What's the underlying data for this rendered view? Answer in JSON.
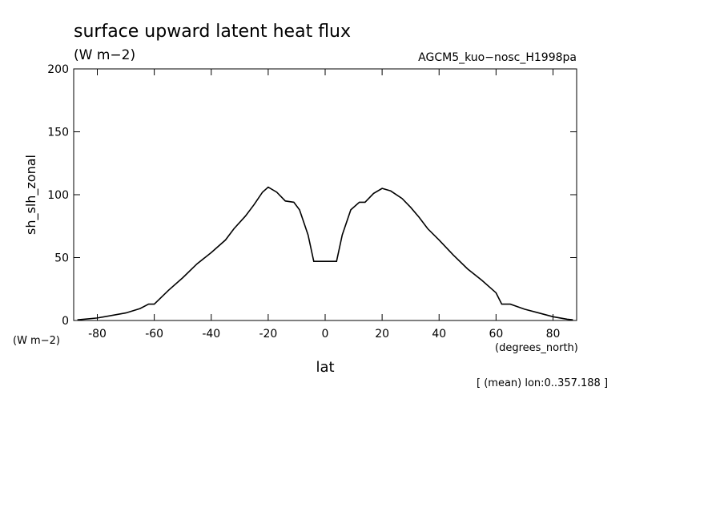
{
  "chart_data": {
    "type": "line",
    "title": "surface upward latent heat flux",
    "units": "(W m−2)",
    "run_label": "AGCM5_kuo−nosc_H1998pa",
    "y_label": "sh_slh_zonal",
    "y_units": "(W m−2)",
    "x_label": "lat",
    "x_units": "(degrees_north)",
    "footnote": "[ (mean) lon:0..357.188 ]",
    "color": "#000000",
    "x": [
      -87,
      -80,
      -70,
      -65,
      -62,
      -60,
      -55,
      -50,
      -45,
      -40,
      -35,
      -32,
      -28,
      -25,
      -22,
      -20,
      -17,
      -14,
      -11,
      -9,
      -6,
      -4,
      4,
      6,
      9,
      12,
      14,
      17,
      20,
      23,
      27,
      30,
      33,
      36,
      40,
      45,
      50,
      55,
      60,
      62,
      65,
      70,
      75,
      80,
      85,
      87
    ],
    "values": [
      0.5,
      2,
      6,
      9.5,
      13,
      13,
      24,
      34,
      45,
      54,
      64,
      73,
      83,
      92,
      102,
      106,
      102,
      95,
      94,
      88,
      68,
      47,
      47,
      68,
      88,
      94,
      94,
      101,
      105,
      103,
      97,
      90,
      82,
      73,
      64,
      52,
      41,
      32,
      22,
      13,
      13,
      9,
      6,
      3,
      1,
      0.5
    ],
    "xlim": [
      -88.3,
      88.3
    ],
    "ylim": [
      0,
      200
    ],
    "xticks": [
      -80,
      -60,
      -40,
      -20,
      0,
      20,
      40,
      60,
      80
    ],
    "yticks": [
      0,
      50,
      100,
      150,
      200
    ]
  }
}
